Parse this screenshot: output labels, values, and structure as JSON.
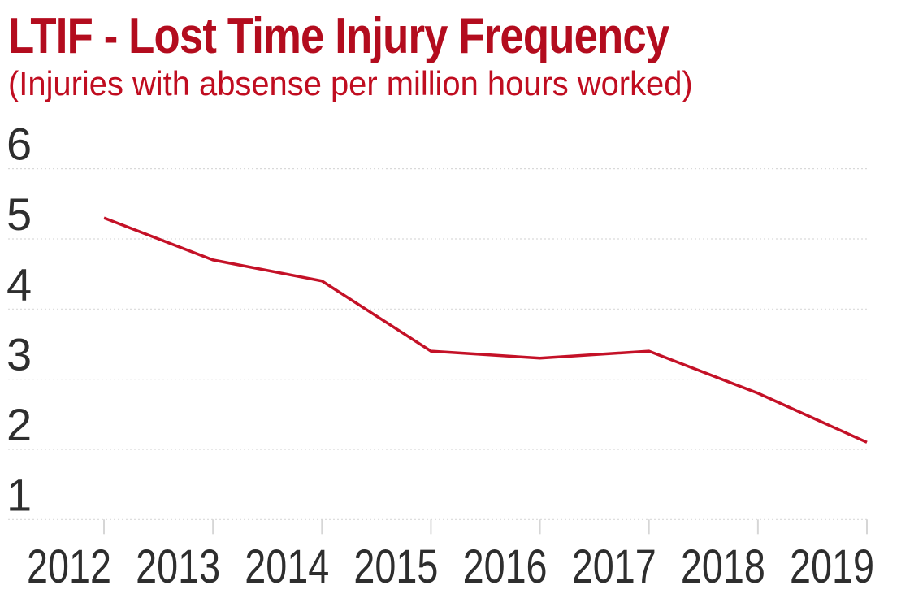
{
  "chart_data": {
    "type": "line",
    "title": "LTIF - Lost Time Injury Frequency",
    "subtitle": "(Injuries with absense per million hours worked)",
    "categories": [
      "2012",
      "2013",
      "2014",
      "2015",
      "2016",
      "2017",
      "2018",
      "2019"
    ],
    "series": [
      {
        "name": "LTIF",
        "values": [
          5.3,
          4.7,
          4.4,
          3.4,
          3.3,
          3.4,
          2.8,
          2.1
        ]
      }
    ],
    "xlabel": "",
    "ylabel": "",
    "ylim": [
      1,
      6
    ],
    "yticks": [
      1,
      2,
      3,
      4,
      5,
      6
    ],
    "grid": "horizontal-dashed",
    "legend": "none",
    "colors": {
      "title_red": "#b30c1e",
      "subtitle_red": "#c00d20",
      "line_red": "#c41127",
      "axis_text": "#2e2e2e",
      "gridline": "#d9d9d9",
      "tick": "#d6d6d6"
    }
  }
}
